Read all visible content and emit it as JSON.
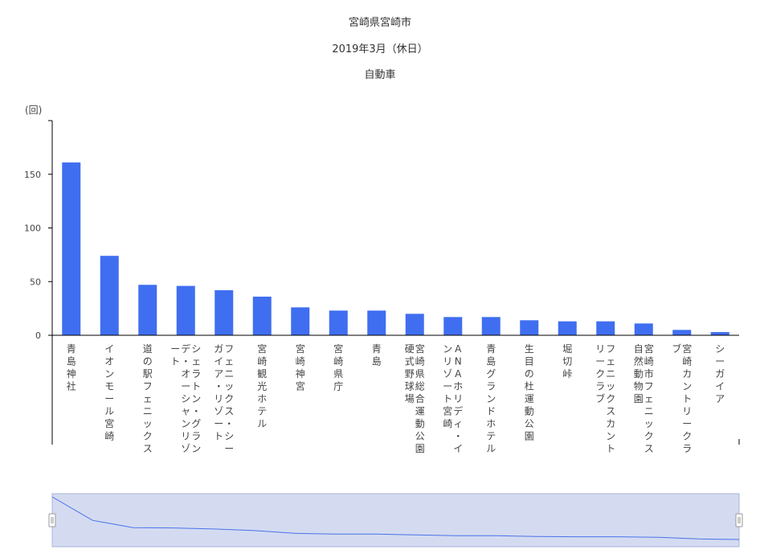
{
  "header": {
    "title": "宮崎県宮崎市",
    "subtitle": "2019年3月（休日）",
    "mode": "自動車"
  },
  "colors": {
    "bar": "#3f6ef0",
    "axis": "#000000",
    "slider_fill": "#d4dbf1",
    "slider_border": "#a8b4d8",
    "slider_line": "#4a72e8"
  },
  "chart_data": {
    "type": "bar",
    "title": "宮崎県宮崎市",
    "subtitle": "2019年3月（休日）",
    "ylabel": "(回)",
    "xlabel": "",
    "ylim": [
      0,
      200
    ],
    "yticks": [
      0,
      50,
      100,
      150
    ],
    "grid": false,
    "categories": [
      [
        "青",
        "島",
        "神",
        "社"
      ],
      [
        "イ",
        "オ",
        "ン",
        "モ",
        "ー",
        "ル",
        "宮",
        "崎"
      ],
      [
        "道",
        "の",
        "駅",
        "フ",
        "ェ",
        "ニ",
        "ッ",
        "ク",
        "ス"
      ],
      [
        "シ",
        "ェ",
        "ラ",
        "ト",
        "ン",
        "・",
        "グ",
        "ラ",
        "ン",
        "デ",
        "・",
        "オ",
        "ー",
        "シ",
        "ャ",
        "ン",
        "リ",
        "ゾ",
        "ー",
        "ト"
      ],
      [
        "フ",
        "ェ",
        "ニ",
        "ッ",
        "ク",
        "ス",
        "・",
        "シ",
        "ー",
        "ガ",
        "イ",
        "ア",
        "・",
        "リ",
        "ゾ",
        "ー",
        "ト"
      ],
      [
        "宮",
        "崎",
        "観",
        "光",
        "ホ",
        "テ",
        "ル"
      ],
      [
        "宮",
        "崎",
        "神",
        "宮"
      ],
      [
        "宮",
        "崎",
        "県",
        "庁"
      ],
      [
        "青",
        "島"
      ],
      [
        "宮",
        "崎",
        "県",
        "総",
        "合",
        "運",
        "動",
        "公",
        "園",
        "硬",
        "式",
        "野",
        "球",
        "場"
      ],
      [
        "A",
        "N",
        "A",
        "ホ",
        "リ",
        "デ",
        "ィ",
        "・",
        "イ",
        "ン",
        "リ",
        "ゾ",
        "ー",
        "ト",
        "宮",
        "崎"
      ],
      [
        "青",
        "島",
        "グ",
        "ラ",
        "ン",
        "ド",
        "ホ",
        "テ",
        "ル"
      ],
      [
        "生",
        "目",
        "の",
        "杜",
        "運",
        "動",
        "公",
        "園"
      ],
      [
        "堀",
        "切",
        "峠"
      ],
      [
        "フ",
        "ェ",
        "ニ",
        "ッ",
        "ク",
        "ス",
        "カ",
        "ン",
        "ト",
        "リ",
        "ー",
        "ク",
        "ラ",
        "ブ"
      ],
      [
        "宮",
        "崎",
        "市",
        "フ",
        "ェ",
        "ニ",
        "ッ",
        "ク",
        "ス",
        "自",
        "然",
        "動",
        "物",
        "園"
      ],
      [
        "宮",
        "崎",
        "カ",
        "ン",
        "ト",
        "リ",
        "ー",
        "ク",
        "ラ",
        "ブ"
      ],
      [
        "シ",
        "ー",
        "ガ",
        "イ",
        "ア"
      ]
    ],
    "values": [
      161,
      74,
      47,
      46,
      42,
      36,
      26,
      23,
      23,
      20,
      17,
      17,
      14,
      13,
      13,
      11,
      5,
      3
    ]
  },
  "slider": {
    "range_start": 0,
    "range_end": 1,
    "left_handle_icon": "grip-icon",
    "right_handle_icon": "grip-icon"
  }
}
